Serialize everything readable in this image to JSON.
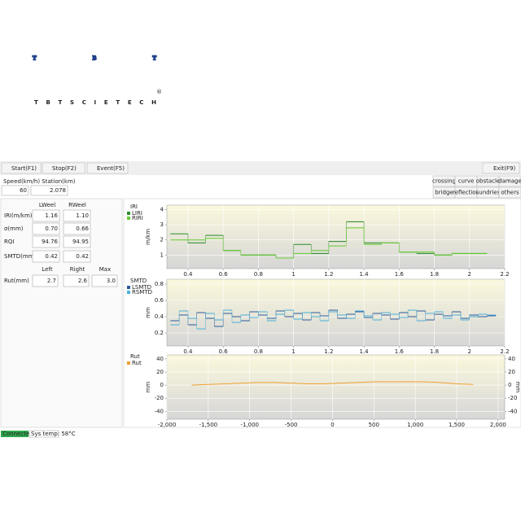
{
  "logo": {
    "letters": "TBT",
    "name": "TBTSCIETECH",
    "registered": "®"
  },
  "toolbar": {
    "buttons": [
      "Start(F1)",
      "Stop(F2)",
      "Event(F5)"
    ],
    "exit": "Exit(F9)"
  },
  "status": {
    "speed_label": "Speed(km/h) Station(km)",
    "speed": "60",
    "station": "2.078"
  },
  "events": [
    "crossing",
    "curve",
    "obstacle",
    "damage",
    "bridge",
    "reflection",
    "sundries",
    "others"
  ],
  "wheel_table": {
    "headers": [
      "LWeel",
      "RWeel"
    ],
    "rows": [
      {
        "label": "IRI(m/km)",
        "values": [
          "1.16",
          "1.10"
        ]
      },
      {
        "label": "σ(mm)",
        "values": [
          "0.70",
          "0.66"
        ]
      },
      {
        "label": "RQI",
        "values": [
          "94.76",
          "94.95"
        ]
      },
      {
        "label": "SMTD(mm)",
        "values": [
          "0.42",
          "0.42"
        ]
      }
    ]
  },
  "rut_table": {
    "headers": [
      "Left",
      "Right",
      "Max"
    ],
    "label": "Rut(mm)",
    "values": [
      "2.7",
      "2.6",
      "3.0"
    ]
  },
  "chart_data": [
    {
      "type": "line",
      "step": true,
      "title": "IRI",
      "y_label": "m/km",
      "x": [
        0.3,
        0.4,
        0.5,
        0.6,
        0.7,
        0.8,
        0.9,
        1.0,
        1.1,
        1.2,
        1.3,
        1.4,
        1.5,
        1.6,
        1.7,
        1.8,
        1.9,
        2.0
      ],
      "series": [
        {
          "name": "LIRI",
          "color": "#2e8b2e",
          "values": [
            2.4,
            1.8,
            2.3,
            1.3,
            1.0,
            1.0,
            0.8,
            1.7,
            1.1,
            1.9,
            3.2,
            1.8,
            1.8,
            1.2,
            1.1,
            1.0,
            1.1,
            1.1
          ]
        },
        {
          "name": "RIRI",
          "color": "#66cc33",
          "values": [
            2.0,
            2.0,
            2.1,
            1.3,
            1.0,
            1.0,
            0.8,
            1.1,
            1.3,
            1.6,
            2.8,
            1.7,
            1.8,
            1.2,
            1.2,
            1.0,
            1.1,
            1.1
          ]
        }
      ],
      "xlim": [
        0.28,
        2.2
      ],
      "ylim": [
        0.1,
        4.3
      ],
      "xticks": [
        0.4,
        0.6,
        0.8,
        1,
        1.2,
        1.4,
        1.6,
        1.8,
        2,
        2.2
      ],
      "yticks": [
        1,
        2,
        3,
        4
      ],
      "grid": true
    },
    {
      "type": "line",
      "step": true,
      "title": "SMTD",
      "y_label": "mm",
      "x": [
        0.3,
        0.35,
        0.4,
        0.45,
        0.5,
        0.55,
        0.6,
        0.65,
        0.7,
        0.75,
        0.8,
        0.85,
        0.9,
        0.95,
        1.0,
        1.05,
        1.1,
        1.15,
        1.2,
        1.25,
        1.3,
        1.35,
        1.4,
        1.45,
        1.5,
        1.55,
        1.6,
        1.65,
        1.7,
        1.75,
        1.8,
        1.85,
        1.9,
        1.95,
        2.0,
        2.05,
        2.1
      ],
      "series": [
        {
          "name": "LSMTD",
          "color": "#2a5a9a",
          "values": [
            0.35,
            0.42,
            0.3,
            0.45,
            0.38,
            0.28,
            0.44,
            0.4,
            0.35,
            0.46,
            0.42,
            0.38,
            0.47,
            0.4,
            0.44,
            0.36,
            0.45,
            0.41,
            0.48,
            0.38,
            0.43,
            0.46,
            0.39,
            0.44,
            0.42,
            0.37,
            0.45,
            0.4,
            0.47,
            0.36,
            0.43,
            0.41,
            0.46,
            0.38,
            0.42,
            0.4,
            0.41
          ]
        },
        {
          "name": "RSMTD",
          "color": "#4ab0d8",
          "values": [
            0.3,
            0.47,
            0.38,
            0.25,
            0.44,
            0.36,
            0.48,
            0.33,
            0.42,
            0.39,
            0.46,
            0.35,
            0.43,
            0.48,
            0.37,
            0.45,
            0.4,
            0.35,
            0.46,
            0.42,
            0.38,
            0.47,
            0.41,
            0.36,
            0.45,
            0.43,
            0.39,
            0.48,
            0.35,
            0.44,
            0.46,
            0.38,
            0.42,
            0.36,
            0.4,
            0.43,
            0.42
          ]
        }
      ],
      "xlim": [
        0.28,
        2.2
      ],
      "ylim": [
        0.04,
        0.86
      ],
      "xticks": [
        0.4,
        0.6,
        0.8,
        1,
        1.2,
        1.4,
        1.6,
        1.8,
        2,
        2.2
      ],
      "yticks": [
        0.2,
        0.4,
        0.6,
        0.8
      ],
      "grid": true
    },
    {
      "type": "line",
      "step": false,
      "title": "Rut",
      "y_label": "mm",
      "y2_label": "mm",
      "x": [
        -1700,
        -1500,
        -1300,
        -1100,
        -900,
        -700,
        -500,
        -300,
        -100,
        100,
        300,
        500,
        700,
        900,
        1100,
        1300,
        1500,
        1700
      ],
      "series": [
        {
          "name": "Rut",
          "color": "#f0a030",
          "values": [
            0,
            1,
            2,
            3,
            4,
            4,
            3,
            2,
            2,
            3,
            4,
            5,
            5,
            5,
            5,
            4,
            2,
            1
          ]
        }
      ],
      "xlim": [
        -2000,
        2080
      ],
      "ylim": [
        -52,
        46
      ],
      "y2lim": [
        -52,
        46
      ],
      "xticks": [
        {
          "value": -2000,
          "label": "-2,000"
        },
        {
          "value": -1500,
          "label": "-1,500"
        },
        {
          "value": -1000,
          "label": "-1,000"
        },
        -500,
        0,
        500,
        {
          "value": 1000,
          "label": "1,000"
        },
        {
          "value": 1500,
          "label": "1,500"
        },
        {
          "value": 2000,
          "label": "2,000"
        }
      ],
      "yticks": [
        -40,
        -20,
        0,
        20,
        40
      ],
      "y2ticks": [
        -40,
        -20,
        0,
        20,
        40
      ],
      "grid": true
    }
  ],
  "footer": {
    "connection": "Connected",
    "temperature": "Sys temp: 58°C"
  }
}
